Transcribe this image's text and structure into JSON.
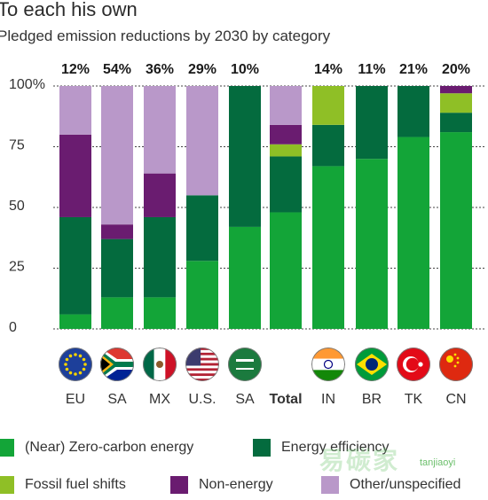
{
  "title": "To each his own",
  "subtitle": "Pledged emission reductions by 2030 by category",
  "colors": {
    "zero_carbon": "#13a538",
    "efficiency": "#046b3e",
    "fossil": "#8fbf26",
    "non_energy": "#6a1c70",
    "other": "#b998c9"
  },
  "chart_data": {
    "type": "bar",
    "stacked": true,
    "ylim": [
      0,
      100
    ],
    "yticks": [
      "0",
      "25",
      "50",
      "75",
      "100%"
    ],
    "categories": [
      "EU",
      "SA",
      "MX",
      "U.S.",
      "SA",
      "Total",
      "IN",
      "BR",
      "TK",
      "CN"
    ],
    "top_labels": [
      "12%",
      "54%",
      "36%",
      "29%",
      "10%",
      "",
      "14%",
      "11%",
      "21%",
      "20%"
    ],
    "flags": [
      "eu-flag-icon",
      "south-africa-flag-icon",
      "mexico-flag-icon",
      "usa-flag-icon",
      "saudi-arabia-flag-icon",
      "",
      "india-flag-icon",
      "brazil-flag-icon",
      "turkey-flag-icon",
      "china-flag-icon"
    ],
    "series": [
      {
        "name": "(Near) Zero-carbon energy",
        "key": "zero_carbon",
        "values": [
          6,
          13,
          13,
          28,
          42,
          48,
          67,
          70,
          79,
          81
        ]
      },
      {
        "name": "Energy efficiency",
        "key": "efficiency",
        "values": [
          40,
          24,
          33,
          27,
          58,
          23,
          17,
          30,
          21,
          8
        ]
      },
      {
        "name": "Fossil fuel shifts",
        "key": "fossil",
        "values": [
          0,
          0,
          0,
          0,
          0,
          5,
          16,
          0,
          0,
          8
        ]
      },
      {
        "name": "Non-energy",
        "key": "non_energy",
        "values": [
          34,
          6,
          18,
          0,
          0,
          8,
          0,
          0,
          0,
          3
        ]
      },
      {
        "name": "Other/unspecified",
        "key": "other",
        "values": [
          20,
          57,
          36,
          45,
          0,
          16,
          0,
          0,
          0,
          0
        ]
      }
    ]
  },
  "legend": [
    {
      "label": "(Near) Zero-carbon energy",
      "key": "zero_carbon"
    },
    {
      "label": "Energy efficiency",
      "key": "efficiency"
    },
    {
      "label": "Fossil fuel shifts",
      "key": "fossil"
    },
    {
      "label": "Non-energy",
      "key": "non_energy"
    },
    {
      "label": "Other/unspecified",
      "key": "other"
    }
  ],
  "watermark": {
    "text": "易碳家",
    "sub": "tanjiaoyi"
  }
}
